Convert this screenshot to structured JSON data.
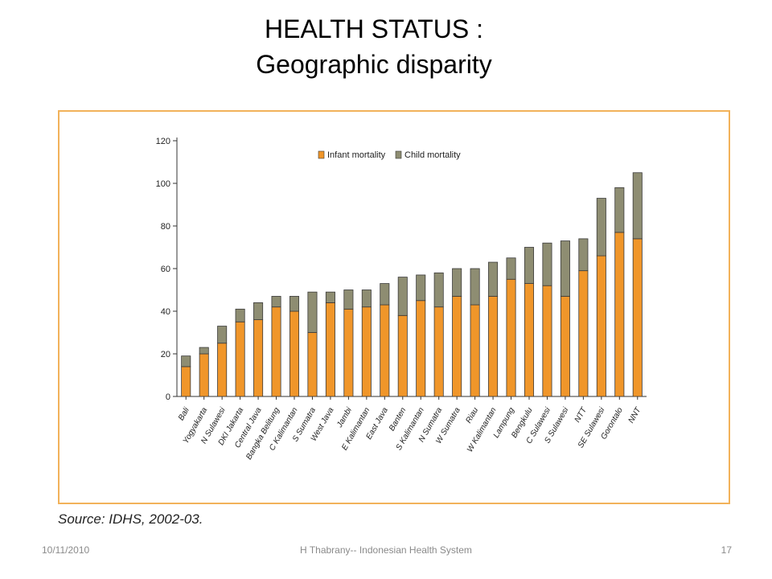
{
  "slide": {
    "title_line1": "HEALTH STATUS :",
    "title_line2": "Geographic disparity",
    "source": "Source: IDHS, 2002-03."
  },
  "footer": {
    "date": "10/11/2010",
    "center": "H Thabrany-- Indonesian Health System",
    "page": "17"
  },
  "colors": {
    "infant": "#f0962a",
    "child": "#8e8d72",
    "frame": "#f2b25a"
  },
  "chart_data": {
    "type": "bar",
    "stacked": true,
    "categories": [
      "Bali",
      "Yogyakarta",
      "N Sulawesi",
      "DKI Jakarta",
      "Central Java",
      "Bangka Belitung",
      "C Kalimantan",
      "S Sumatra",
      "West Java",
      "Jambi",
      "E Kalimantan",
      "East Java",
      "Banten",
      "S Kalimantan",
      "N Sumatra",
      "W Sumatra",
      "Riau",
      "W Kalimantan",
      "Lampung",
      "Bengkulu",
      "C Sulawesi",
      "S Sulawesi",
      "NTT",
      "SE Sulawesi",
      "Gorontalo",
      "NNT"
    ],
    "series": [
      {
        "name": "Infant mortality",
        "values": [
          14,
          20,
          25,
          35,
          36,
          42,
          40,
          30,
          44,
          41,
          42,
          43,
          38,
          45,
          42,
          47,
          43,
          47,
          55,
          53,
          52,
          47,
          59,
          66,
          77,
          74
        ]
      },
      {
        "name": "Child mortality",
        "values": [
          5,
          3,
          8,
          6,
          8,
          5,
          7,
          19,
          5,
          9,
          8,
          10,
          18,
          12,
          16,
          13,
          17,
          16,
          10,
          17,
          20,
          26,
          15,
          27,
          21,
          31
        ]
      }
    ],
    "ylim": [
      0,
      120
    ],
    "yticks": [
      0,
      20,
      40,
      60,
      80,
      100,
      120
    ],
    "legend_position": "top-center",
    "grid": false
  }
}
